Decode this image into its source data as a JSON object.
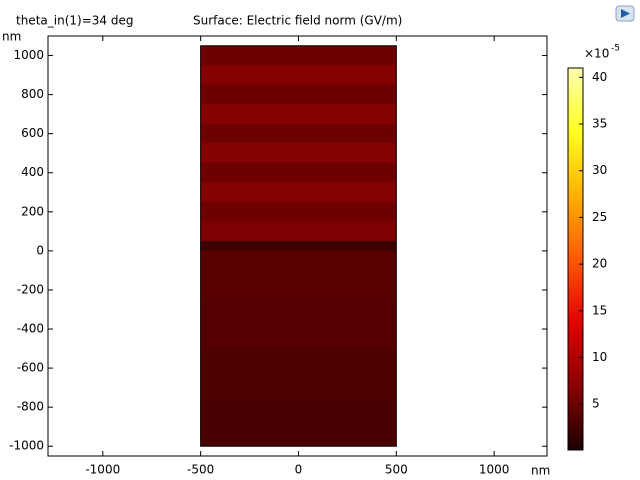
{
  "chart_data": {
    "type": "surface",
    "title": "Surface: Electric field norm (GV/m)",
    "subtitle": "theta_in(1)=34 deg",
    "x_unit": "nm",
    "y_unit": "nm",
    "xlim": [
      -1280,
      1270
    ],
    "ylim": [
      -1050,
      1100
    ],
    "xticks": [
      -1000,
      -500,
      0,
      500,
      1000
    ],
    "yticks": [
      -1000,
      -800,
      -600,
      -400,
      -200,
      0,
      200,
      400,
      600,
      800,
      1000
    ],
    "regions": [
      {
        "x": [
          -500,
          500
        ],
        "y": [
          950,
          1050
        ],
        "value": 5.2
      },
      {
        "x": [
          -500,
          500
        ],
        "y": [
          850,
          950
        ],
        "value": 6.6
      },
      {
        "x": [
          -500,
          500
        ],
        "y": [
          750,
          850
        ],
        "value": 5.2
      },
      {
        "x": [
          -500,
          500
        ],
        "y": [
          650,
          750
        ],
        "value": 6.6
      },
      {
        "x": [
          -500,
          500
        ],
        "y": [
          550,
          650
        ],
        "value": 5.2
      },
      {
        "x": [
          -500,
          500
        ],
        "y": [
          450,
          550
        ],
        "value": 6.6
      },
      {
        "x": [
          -500,
          500
        ],
        "y": [
          350,
          450
        ],
        "value": 5.2
      },
      {
        "x": [
          -500,
          500
        ],
        "y": [
          250,
          350
        ],
        "value": 6.6
      },
      {
        "x": [
          -500,
          500
        ],
        "y": [
          150,
          250
        ],
        "value": 5.2
      },
      {
        "x": [
          -500,
          500
        ],
        "y": [
          50,
          150
        ],
        "value": 6.2
      },
      {
        "x": [
          -500,
          500
        ],
        "y": [
          0,
          50
        ],
        "value": 2.2
      },
      {
        "x": [
          -500,
          500
        ],
        "y": [
          -250,
          0
        ],
        "value": 3.9
      },
      {
        "x": [
          -500,
          500
        ],
        "y": [
          -500,
          -250
        ],
        "value": 3.6
      },
      {
        "x": [
          -500,
          500
        ],
        "y": [
          -750,
          -500
        ],
        "value": 3.3
      },
      {
        "x": [
          -500,
          500
        ],
        "y": [
          -1000,
          -750
        ],
        "value": 3.0
      }
    ],
    "clim": [
      0.1,
      41
    ],
    "colorbar_ticks": [
      5,
      10,
      15,
      20,
      25,
      30,
      35,
      40
    ],
    "colorbar_base": "×10",
    "colorbar_exponent": "-5",
    "colormap": [
      "#1a0000",
      "#8a0000",
      "#e00000",
      "#ff5a00",
      "#ffb000",
      "#ffff20",
      "#ffffb0"
    ]
  }
}
